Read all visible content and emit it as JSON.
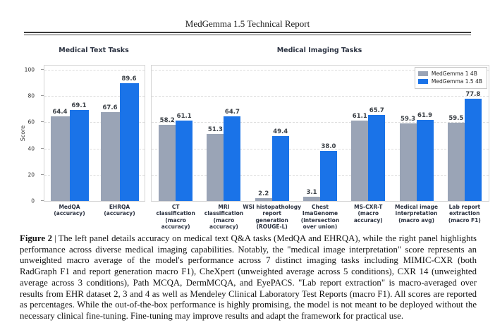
{
  "header": {
    "title": "MedGemma 1.5 Technical Report"
  },
  "colors": {
    "series_gray": "#9aa4b6",
    "series_blue": "#1a73e8",
    "gridline": "#dcdcdc",
    "chart_text": "#2a3140"
  },
  "chart_data": [
    {
      "type": "bar",
      "title": "Medical Text Tasks",
      "xlabel": "",
      "ylabel": "Score",
      "ylim": [
        0,
        100
      ],
      "yticks": [
        0,
        20,
        40,
        60,
        80,
        100
      ],
      "grid": "horizontal-dashed",
      "categories": [
        [
          "MedQA",
          "(accuracy)"
        ],
        [
          "EHRQA",
          "(accuracy)"
        ]
      ],
      "series": [
        {
          "name": "MedGemma 1 4B",
          "color": "#9aa4b6",
          "values": [
            64.4,
            67.6
          ]
        },
        {
          "name": "MedGemma 1.5 4B",
          "color": "#1a73e8",
          "values": [
            69.1,
            89.6
          ]
        }
      ]
    },
    {
      "type": "bar",
      "title": "Medical Imaging Tasks",
      "xlabel": "",
      "ylabel": "",
      "ylim": [
        0,
        100
      ],
      "yticks": [
        0,
        20,
        40,
        60,
        80,
        100
      ],
      "grid": "horizontal-dashed",
      "legend_position": "top-right",
      "categories": [
        [
          "CT",
          "classification",
          "(macro",
          "accuracy)"
        ],
        [
          "MRI",
          "classification",
          "(macro",
          "accuracy)"
        ],
        [
          "WSI histopathology",
          "report",
          "generation",
          "(ROUGE-L)"
        ],
        [
          "Chest",
          "ImaGenome",
          "(intersection",
          "over union)"
        ],
        [
          "MS-CXR-T",
          "(macro",
          "accuracy)"
        ],
        [
          "Medical image",
          "interpretation",
          "(macro avg)"
        ],
        [
          "Lab report",
          "extraction",
          "(macro F1)"
        ]
      ],
      "series": [
        {
          "name": "MedGemma 1 4B",
          "color": "#9aa4b6",
          "values": [
            58.2,
            51.3,
            2.2,
            3.1,
            61.1,
            59.3,
            59.5
          ]
        },
        {
          "name": "MedGemma 1.5 4B",
          "color": "#1a73e8",
          "values": [
            61.1,
            64.7,
            49.4,
            38.0,
            65.7,
            61.9,
            77.8
          ]
        }
      ]
    }
  ],
  "caption": {
    "label": "Figure 2",
    "separator": "|",
    "text": "The left panel details accuracy on medical text Q&A tasks (MedQA and EHRQA), while the right panel highlights performance across diverse medical imaging capabilities. Notably, the \"medical image interpretation\" score represents an unweighted macro average of the model's performance across 7 distinct imaging tasks including MIMIC-CXR (both RadGraph F1 and report generation macro F1), CheXpert (unweighted average across 5 conditions), CXR 14 (unweighted average across 3 conditions), Path MCQA, DermMCQA, and EyePACS. \"Lab report extraction\" is macro-averaged over results from EHR dataset 2, 3 and 4 as well as Mendeley Clinical Laboratory Test Reports (macro F1). All scores are reported as percentages. While the out-of-the-box performance is highly promising, the model is not meant to be deployed without the necessary clinical fine-tuning. Fine-tuning may improve results and adapt the framework for practical use."
  }
}
